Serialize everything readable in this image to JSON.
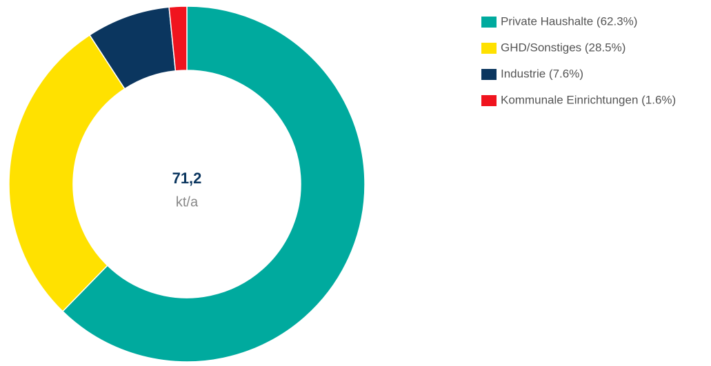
{
  "chart_data": {
    "type": "donut",
    "categories": [
      "Private Haushalte (62.3%)",
      "GHD/Sonstiges (28.5%)",
      "Industrie (7.6%)",
      "Kommunale Einrichtungen (1.6%)"
    ],
    "values": [
      62.3,
      28.5,
      7.6,
      1.6
    ],
    "colors": [
      "#00aa9e",
      "#ffe100",
      "#0b365f",
      "#f0141e"
    ],
    "center_text": "71,2",
    "center_subtext": "kt/a",
    "legend": "top-right"
  }
}
